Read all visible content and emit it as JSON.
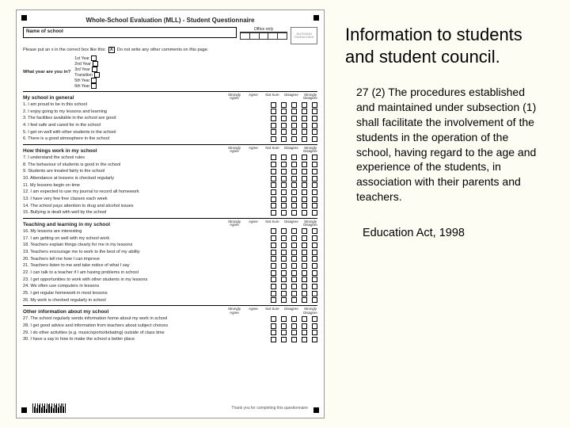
{
  "right": {
    "title": "Information to students and student council.",
    "body": "27 (2) The procedures established and maintained under subsection (1) shall facilitate the involvement of the students in the operation of the school, having regard to the age and experience of the students, in association with their parents and teachers.",
    "footer": "Education Act, 1998"
  },
  "form": {
    "title": "Whole-School Evaluation (MLL) - Student Questionnaire",
    "name_label": "Name of school",
    "office_label": "Office only",
    "logo_text": "AN ROINN OIDEACHAIS",
    "instruction_a": "Please put an x in the correct box like this:",
    "demo_x": "X",
    "instruction_b": "Do not write any other comments on this page.",
    "year_q": "What year are you in?",
    "years": [
      "1st Year",
      "2nd Year",
      "3rd Year",
      "Transition",
      "5th Year",
      "6th Year"
    ],
    "cols": [
      "Strongly Agree",
      "Agree",
      "Not Sure",
      "Disagree",
      "Strongly Disagree"
    ],
    "sections": [
      {
        "title": "My school in general",
        "items": [
          "1. I am proud to be in this school",
          "2. I enjoy going to my lessons and learning",
          "3. The facilities available in the school are good",
          "4. I feel safe and cared for in the school",
          "5. I get on well with other students in the school",
          "6. There is a good atmosphere in the school"
        ]
      },
      {
        "title": "How things work in my school",
        "items": [
          "7. I understand the school rules",
          "8. The behaviour of students is good in the school",
          "9. Students are treated fairly in the school",
          "10. Attendance at lessons is checked regularly",
          "11. My lessons begin on time",
          "12. I am expected to use my journal to record all homework",
          "13. I have very few free classes each week",
          "14. The school pays attention to drug and alcohol issues",
          "15. Bullying is dealt with well by the school"
        ]
      },
      {
        "title": "Teaching and learning in my school",
        "items": [
          "16. My lessons are interesting",
          "17. I am getting on well with my school work",
          "18. Teachers explain things clearly for me in my lessons",
          "19. Teachers encourage me to work to the best of my ability",
          "20. Teachers tell me how I can improve",
          "21. Teachers listen to me and take notice of what I say",
          "22. I can talk to a teacher if I am having problems in school",
          "23. I get opportunities to work with other students in my lessons",
          "24. We often use computers in lessons",
          "25. I get regular homework in most lessons",
          "26. My work is checked regularly in school"
        ]
      },
      {
        "title": "Other information about my school",
        "items": [
          "27. The school regularly sends information home about my work in school",
          "28. I get good advice and information from teachers about subject choices",
          "29. I do other activities (e.g. music/sports/debating) outside of class time",
          "30. I have a say in how to make the school a better place"
        ]
      }
    ],
    "thanks": "Thank you for completing this questionnaire"
  },
  "style": {
    "bg": "#fdfdf4",
    "form_bg": "#ffffff",
    "text": "#000000"
  }
}
